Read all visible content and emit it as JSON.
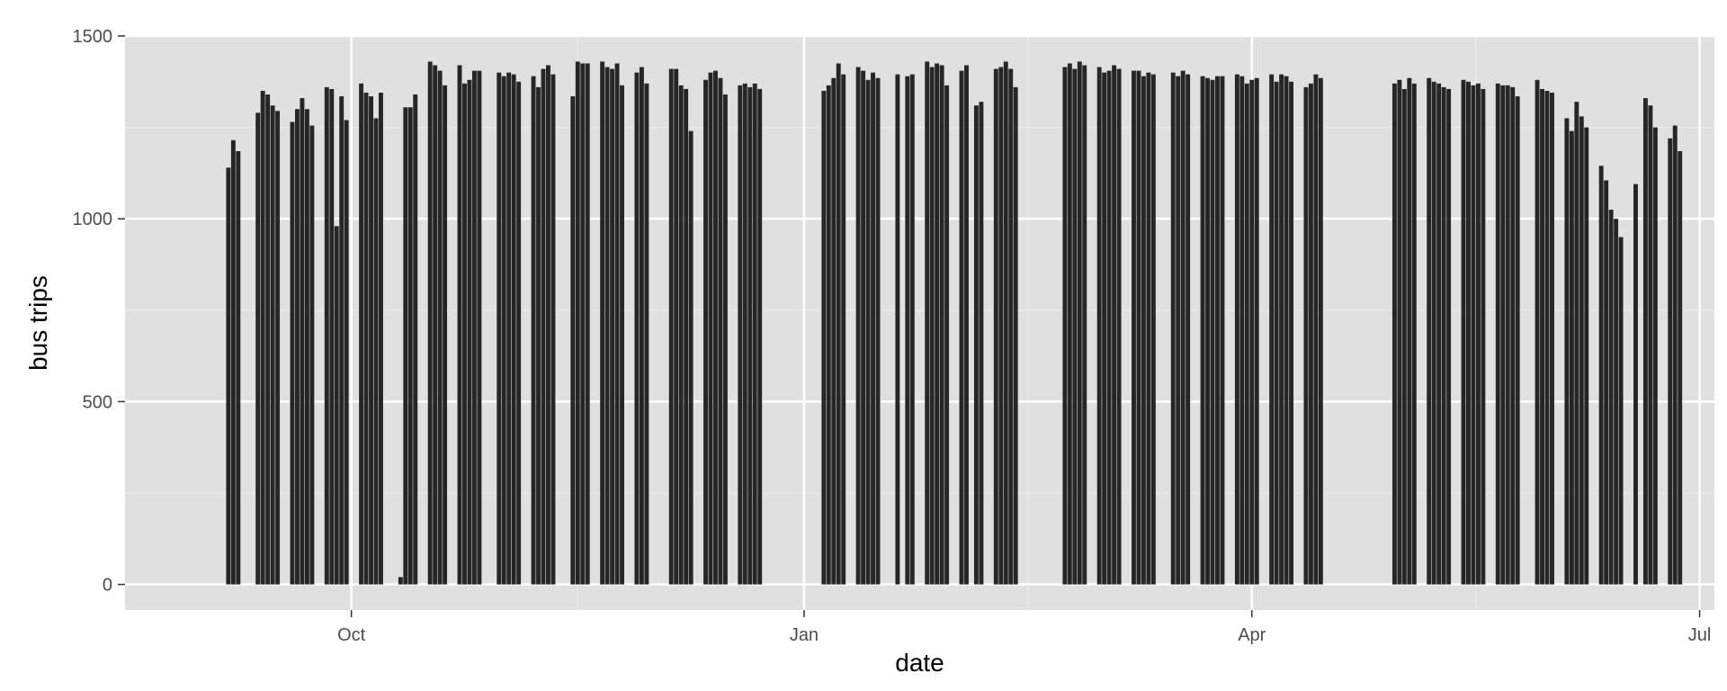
{
  "chart_data": {
    "type": "bar",
    "xlabel": "date",
    "ylabel": "bus trips",
    "x_axis": {
      "type": "date",
      "range": [
        "2011-08-16",
        "2012-07-04"
      ],
      "ticks": [
        {
          "date": "2011-10-01",
          "label": "Oct"
        },
        {
          "date": "2012-01-01",
          "label": "Jan"
        },
        {
          "date": "2012-04-01",
          "label": "Apr"
        },
        {
          "date": "2012-07-01",
          "label": "Jul"
        }
      ]
    },
    "y_axis": {
      "range": [
        -70,
        1500
      ],
      "ticks": [
        0,
        500,
        1000,
        1500
      ]
    },
    "grid": true,
    "colors": {
      "bar": "#262626",
      "panel": "#e0e0e0",
      "grid_major": "#ffffff",
      "grid_minor": "#eeeeee"
    },
    "points": [
      {
        "date": "2011-09-06",
        "value": 1140
      },
      {
        "date": "2011-09-07",
        "value": 1215
      },
      {
        "date": "2011-09-08",
        "value": 1185
      },
      {
        "date": "2011-09-12",
        "value": 1290
      },
      {
        "date": "2011-09-13",
        "value": 1350
      },
      {
        "date": "2011-09-14",
        "value": 1340
      },
      {
        "date": "2011-09-15",
        "value": 1310
      },
      {
        "date": "2011-09-16",
        "value": 1295
      },
      {
        "date": "2011-09-19",
        "value": 1265
      },
      {
        "date": "2011-09-20",
        "value": 1300
      },
      {
        "date": "2011-09-21",
        "value": 1330
      },
      {
        "date": "2011-09-22",
        "value": 1300
      },
      {
        "date": "2011-09-23",
        "value": 1255
      },
      {
        "date": "2011-09-26",
        "value": 1360
      },
      {
        "date": "2011-09-27",
        "value": 1355
      },
      {
        "date": "2011-09-28",
        "value": 980
      },
      {
        "date": "2011-09-29",
        "value": 1335
      },
      {
        "date": "2011-09-30",
        "value": 1270
      },
      {
        "date": "2011-10-03",
        "value": 1370
      },
      {
        "date": "2011-10-04",
        "value": 1345
      },
      {
        "date": "2011-10-05",
        "value": 1335
      },
      {
        "date": "2011-10-06",
        "value": 1275
      },
      {
        "date": "2011-10-07",
        "value": 1345
      },
      {
        "date": "2011-10-11",
        "value": 20
      },
      {
        "date": "2011-10-12",
        "value": 1305
      },
      {
        "date": "2011-10-13",
        "value": 1305
      },
      {
        "date": "2011-10-14",
        "value": 1340
      },
      {
        "date": "2011-10-17",
        "value": 1430
      },
      {
        "date": "2011-10-18",
        "value": 1420
      },
      {
        "date": "2011-10-19",
        "value": 1405
      },
      {
        "date": "2011-10-20",
        "value": 1365
      },
      {
        "date": "2011-10-23",
        "value": 1420
      },
      {
        "date": "2011-10-24",
        "value": 1370
      },
      {
        "date": "2011-10-25",
        "value": 1380
      },
      {
        "date": "2011-10-26",
        "value": 1405
      },
      {
        "date": "2011-10-27",
        "value": 1405
      },
      {
        "date": "2011-10-31",
        "value": 1400
      },
      {
        "date": "2011-11-01",
        "value": 1390
      },
      {
        "date": "2011-11-02",
        "value": 1400
      },
      {
        "date": "2011-11-03",
        "value": 1395
      },
      {
        "date": "2011-11-04",
        "value": 1375
      },
      {
        "date": "2011-11-07",
        "value": 1390
      },
      {
        "date": "2011-11-08",
        "value": 1360
      },
      {
        "date": "2011-11-09",
        "value": 1410
      },
      {
        "date": "2011-11-10",
        "value": 1420
      },
      {
        "date": "2011-11-11",
        "value": 1395
      },
      {
        "date": "2011-11-15",
        "value": 1335
      },
      {
        "date": "2011-11-16",
        "value": 1430
      },
      {
        "date": "2011-11-17",
        "value": 1425
      },
      {
        "date": "2011-11-18",
        "value": 1425
      },
      {
        "date": "2011-11-21",
        "value": 1430
      },
      {
        "date": "2011-11-22",
        "value": 1415
      },
      {
        "date": "2011-11-23",
        "value": 1410
      },
      {
        "date": "2011-11-24",
        "value": 1425
      },
      {
        "date": "2011-11-25",
        "value": 1365
      },
      {
        "date": "2011-11-28",
        "value": 1400
      },
      {
        "date": "2011-11-29",
        "value": 1415
      },
      {
        "date": "2011-11-30",
        "value": 1370
      },
      {
        "date": "2011-12-05",
        "value": 1410
      },
      {
        "date": "2011-12-06",
        "value": 1410
      },
      {
        "date": "2011-12-07",
        "value": 1365
      },
      {
        "date": "2011-12-08",
        "value": 1355
      },
      {
        "date": "2011-12-09",
        "value": 1240
      },
      {
        "date": "2011-12-12",
        "value": 1380
      },
      {
        "date": "2011-12-13",
        "value": 1400
      },
      {
        "date": "2011-12-14",
        "value": 1405
      },
      {
        "date": "2011-12-15",
        "value": 1385
      },
      {
        "date": "2011-12-16",
        "value": 1340
      },
      {
        "date": "2011-12-19",
        "value": 1365
      },
      {
        "date": "2011-12-20",
        "value": 1370
      },
      {
        "date": "2011-12-21",
        "value": 1360
      },
      {
        "date": "2011-12-22",
        "value": 1370
      },
      {
        "date": "2011-12-23",
        "value": 1355
      },
      {
        "date": "2012-01-05",
        "value": 1350
      },
      {
        "date": "2012-01-06",
        "value": 1365
      },
      {
        "date": "2012-01-07",
        "value": 1385
      },
      {
        "date": "2012-01-08",
        "value": 1425
      },
      {
        "date": "2012-01-09",
        "value": 1395
      },
      {
        "date": "2012-01-12",
        "value": 1415
      },
      {
        "date": "2012-01-13",
        "value": 1405
      },
      {
        "date": "2012-01-14",
        "value": 1380
      },
      {
        "date": "2012-01-15",
        "value": 1400
      },
      {
        "date": "2012-01-16",
        "value": 1385
      },
      {
        "date": "2012-01-20",
        "value": 1395
      },
      {
        "date": "2012-01-22",
        "value": 1390
      },
      {
        "date": "2012-01-23",
        "value": 1395
      },
      {
        "date": "2012-01-26",
        "value": 1430
      },
      {
        "date": "2012-01-27",
        "value": 1415
      },
      {
        "date": "2012-01-28",
        "value": 1425
      },
      {
        "date": "2012-01-29",
        "value": 1420
      },
      {
        "date": "2012-01-30",
        "value": 1365
      },
      {
        "date": "2012-02-02",
        "value": 1405
      },
      {
        "date": "2012-02-03",
        "value": 1420
      },
      {
        "date": "2012-02-05",
        "value": 1310
      },
      {
        "date": "2012-02-06",
        "value": 1320
      },
      {
        "date": "2012-02-09",
        "value": 1410
      },
      {
        "date": "2012-02-10",
        "value": 1415
      },
      {
        "date": "2012-02-11",
        "value": 1430
      },
      {
        "date": "2012-02-12",
        "value": 1410
      },
      {
        "date": "2012-02-13",
        "value": 1360
      },
      {
        "date": "2012-02-23",
        "value": 1415
      },
      {
        "date": "2012-02-24",
        "value": 1425
      },
      {
        "date": "2012-02-25",
        "value": 1410
      },
      {
        "date": "2012-02-26",
        "value": 1430
      },
      {
        "date": "2012-02-27",
        "value": 1420
      },
      {
        "date": "2012-03-01",
        "value": 1415
      },
      {
        "date": "2012-03-02",
        "value": 1400
      },
      {
        "date": "2012-03-03",
        "value": 1405
      },
      {
        "date": "2012-03-04",
        "value": 1420
      },
      {
        "date": "2012-03-05",
        "value": 1410
      },
      {
        "date": "2012-03-08",
        "value": 1405
      },
      {
        "date": "2012-03-09",
        "value": 1405
      },
      {
        "date": "2012-03-10",
        "value": 1390
      },
      {
        "date": "2012-03-11",
        "value": 1400
      },
      {
        "date": "2012-03-12",
        "value": 1395
      },
      {
        "date": "2012-03-16",
        "value": 1400
      },
      {
        "date": "2012-03-17",
        "value": 1390
      },
      {
        "date": "2012-03-18",
        "value": 1405
      },
      {
        "date": "2012-03-19",
        "value": 1395
      },
      {
        "date": "2012-03-22",
        "value": 1390
      },
      {
        "date": "2012-03-23",
        "value": 1385
      },
      {
        "date": "2012-03-24",
        "value": 1380
      },
      {
        "date": "2012-03-25",
        "value": 1390
      },
      {
        "date": "2012-03-26",
        "value": 1390
      },
      {
        "date": "2012-03-29",
        "value": 1395
      },
      {
        "date": "2012-03-30",
        "value": 1390
      },
      {
        "date": "2012-03-31",
        "value": 1370
      },
      {
        "date": "2012-04-01",
        "value": 1380
      },
      {
        "date": "2012-04-02",
        "value": 1385
      },
      {
        "date": "2012-04-05",
        "value": 1395
      },
      {
        "date": "2012-04-06",
        "value": 1375
      },
      {
        "date": "2012-04-07",
        "value": 1395
      },
      {
        "date": "2012-04-08",
        "value": 1390
      },
      {
        "date": "2012-04-09",
        "value": 1375
      },
      {
        "date": "2012-04-12",
        "value": 1360
      },
      {
        "date": "2012-04-13",
        "value": 1370
      },
      {
        "date": "2012-04-14",
        "value": 1395
      },
      {
        "date": "2012-04-15",
        "value": 1385
      },
      {
        "date": "2012-04-30",
        "value": 1370
      },
      {
        "date": "2012-05-01",
        "value": 1380
      },
      {
        "date": "2012-05-02",
        "value": 1355
      },
      {
        "date": "2012-05-03",
        "value": 1385
      },
      {
        "date": "2012-05-04",
        "value": 1370
      },
      {
        "date": "2012-05-07",
        "value": 1385
      },
      {
        "date": "2012-05-08",
        "value": 1375
      },
      {
        "date": "2012-05-09",
        "value": 1370
      },
      {
        "date": "2012-05-10",
        "value": 1360
      },
      {
        "date": "2012-05-11",
        "value": 1355
      },
      {
        "date": "2012-05-14",
        "value": 1380
      },
      {
        "date": "2012-05-15",
        "value": 1375
      },
      {
        "date": "2012-05-16",
        "value": 1365
      },
      {
        "date": "2012-05-17",
        "value": 1370
      },
      {
        "date": "2012-05-18",
        "value": 1355
      },
      {
        "date": "2012-05-21",
        "value": 1370
      },
      {
        "date": "2012-05-22",
        "value": 1365
      },
      {
        "date": "2012-05-23",
        "value": 1365
      },
      {
        "date": "2012-05-24",
        "value": 1360
      },
      {
        "date": "2012-05-25",
        "value": 1335
      },
      {
        "date": "2012-05-29",
        "value": 1380
      },
      {
        "date": "2012-05-30",
        "value": 1355
      },
      {
        "date": "2012-05-31",
        "value": 1350
      },
      {
        "date": "2012-06-01",
        "value": 1345
      },
      {
        "date": "2012-06-04",
        "value": 1275
      },
      {
        "date": "2012-06-05",
        "value": 1240
      },
      {
        "date": "2012-06-06",
        "value": 1320
      },
      {
        "date": "2012-06-07",
        "value": 1280
      },
      {
        "date": "2012-06-08",
        "value": 1250
      },
      {
        "date": "2012-06-11",
        "value": 1145
      },
      {
        "date": "2012-06-12",
        "value": 1105
      },
      {
        "date": "2012-06-13",
        "value": 1025
      },
      {
        "date": "2012-06-14",
        "value": 1000
      },
      {
        "date": "2012-06-15",
        "value": 950
      },
      {
        "date": "2012-06-18",
        "value": 1095
      },
      {
        "date": "2012-06-20",
        "value": 1330
      },
      {
        "date": "2012-06-21",
        "value": 1310
      },
      {
        "date": "2012-06-22",
        "value": 1250
      },
      {
        "date": "2012-06-25",
        "value": 1220
      },
      {
        "date": "2012-06-26",
        "value": 1255
      },
      {
        "date": "2012-06-27",
        "value": 1185
      }
    ]
  }
}
